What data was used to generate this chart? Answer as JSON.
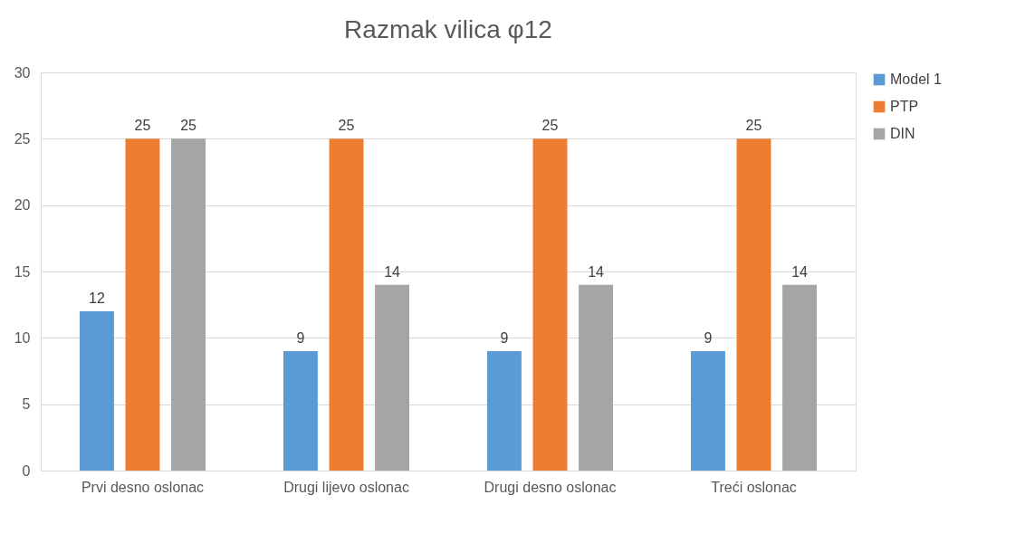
{
  "chart_data": {
    "type": "bar",
    "title": "Razmak vilica φ12",
    "categories": [
      "Prvi desno oslonac",
      "Drugi lijevo oslonac",
      "Drugi desno oslonac",
      "Treći oslonac"
    ],
    "series": [
      {
        "name": "Model 1",
        "color": "#5b9bd5",
        "values": [
          12,
          9,
          9,
          9
        ]
      },
      {
        "name": "PTP",
        "color": "#ed7d31",
        "values": [
          25,
          25,
          25,
          25
        ]
      },
      {
        "name": "DIN",
        "color": "#a5a5a5",
        "values": [
          25,
          14,
          14,
          14
        ]
      }
    ],
    "ylim": [
      0,
      30
    ],
    "yticks": [
      0,
      5,
      10,
      15,
      20,
      25,
      30
    ],
    "grid": "y",
    "legend": "right",
    "data_labels": true
  }
}
